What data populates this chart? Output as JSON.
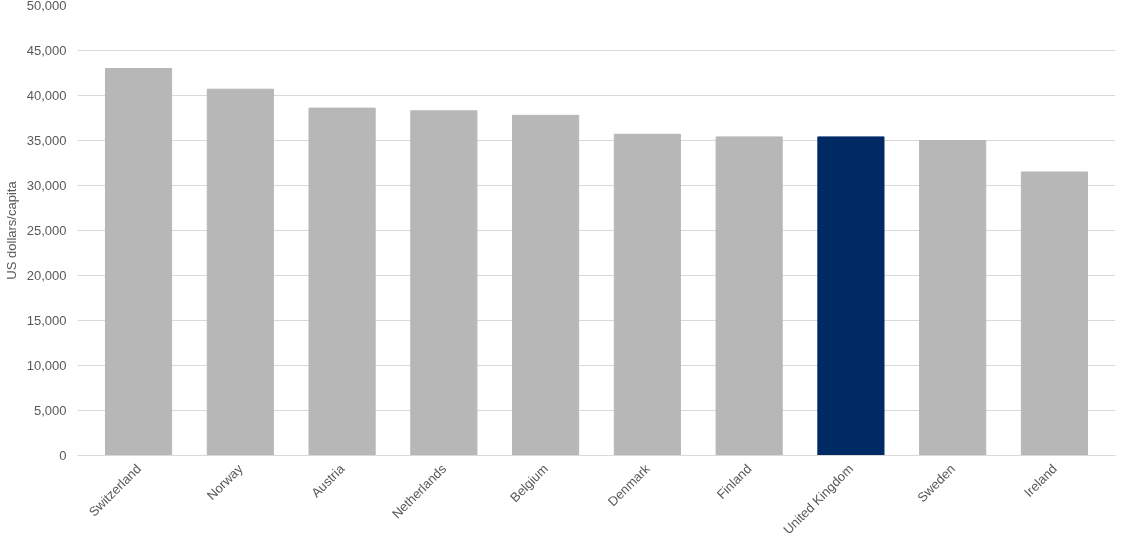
{
  "chart_data": {
    "type": "bar",
    "ylabel": "US dollars/capita",
    "categories": [
      "Switzerland",
      "Norway",
      "Austria",
      "Netherlands",
      "Belgium",
      "Denmark",
      "Finland",
      "United Kingdom",
      "Sweden",
      "Ireland"
    ],
    "values": [
      43000,
      40700,
      38600,
      38300,
      37800,
      35700,
      35400,
      35400,
      35000,
      31500
    ],
    "colors": [
      "#b7b7b7",
      "#b7b7b7",
      "#b7b7b7",
      "#b7b7b7",
      "#b7b7b7",
      "#b7b7b7",
      "#b7b7b7",
      "#002a64",
      "#b7b7b7",
      "#b7b7b7"
    ],
    "ylim": [
      0,
      50000
    ],
    "yticks": [
      {
        "value": 0,
        "label": "0"
      },
      {
        "value": 5000,
        "label": "5,000"
      },
      {
        "value": 10000,
        "label": "10,000"
      },
      {
        "value": 15000,
        "label": "15,000"
      },
      {
        "value": 20000,
        "label": "20,000"
      },
      {
        "value": 25000,
        "label": "25,000"
      },
      {
        "value": 30000,
        "label": "30,000"
      },
      {
        "value": 35000,
        "label": "35,000"
      },
      {
        "value": 40000,
        "label": "40,000"
      },
      {
        "value": 45000,
        "label": "45,000"
      },
      {
        "value": 50000,
        "label": "50,000"
      }
    ],
    "grid": "y"
  }
}
